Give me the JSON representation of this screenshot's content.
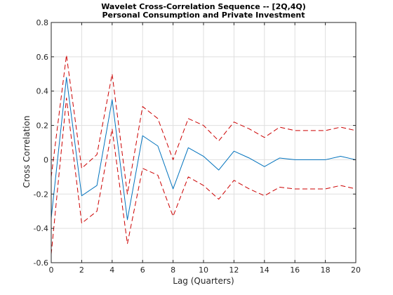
{
  "chart_data": {
    "type": "line",
    "title": "Wavelet Cross-Correlation Sequence -- [2Q,4Q)",
    "subtitle": "Personal Consumption and Private Investment",
    "xlabel": "Lag (Quarters)",
    "ylabel": "Cross Correlation",
    "xlim": [
      0,
      20
    ],
    "ylim": [
      -0.6,
      0.8
    ],
    "xticks": [
      "0",
      "2",
      "4",
      "6",
      "8",
      "10",
      "12",
      "14",
      "16",
      "18",
      "20"
    ],
    "yticks": [
      "-0.6",
      "-0.4",
      "-0.2",
      "0",
      "0.2",
      "0.4",
      "0.6",
      "0.8"
    ],
    "grid": true,
    "x": [
      0,
      1,
      2,
      3,
      4,
      5,
      6,
      7,
      8,
      9,
      10,
      11,
      12,
      13,
      14,
      15,
      16,
      17,
      18,
      19,
      20
    ],
    "series": [
      {
        "style": "solid",
        "color": "#0072BD",
        "values": [
          -0.34,
          0.48,
          -0.21,
          -0.15,
          0.35,
          -0.35,
          0.14,
          0.08,
          -0.17,
          0.07,
          0.02,
          -0.06,
          0.05,
          0.01,
          -0.04,
          0.01,
          0.0,
          0.0,
          0.0,
          0.02,
          0.0
        ]
      },
      {
        "style": "dashed",
        "color": "#CC0000",
        "values": [
          -0.1,
          0.61,
          -0.05,
          0.03,
          0.5,
          -0.2,
          0.31,
          0.24,
          0.0,
          0.24,
          0.2,
          0.11,
          0.22,
          0.18,
          0.13,
          0.19,
          0.17,
          0.17,
          0.17,
          0.19,
          0.17
        ]
      },
      {
        "style": "dashed",
        "color": "#CC0000",
        "values": [
          -0.55,
          0.36,
          -0.37,
          -0.3,
          0.18,
          -0.49,
          -0.05,
          -0.09,
          -0.33,
          -0.1,
          -0.15,
          -0.23,
          -0.12,
          -0.17,
          -0.21,
          -0.16,
          -0.17,
          -0.17,
          -0.17,
          -0.15,
          -0.17
        ]
      }
    ]
  }
}
